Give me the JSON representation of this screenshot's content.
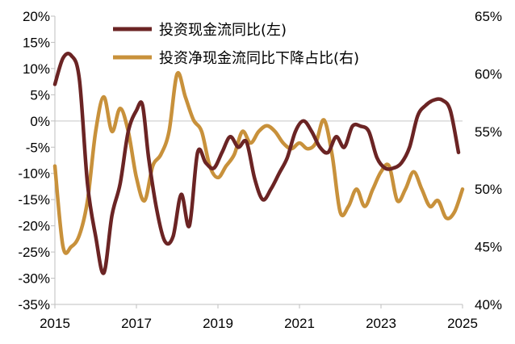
{
  "chart_data": {
    "type": "line",
    "title": "",
    "xlabel": "",
    "x_ticks": [
      "2015",
      "2017",
      "2019",
      "2021",
      "2023",
      "2025"
    ],
    "x_range": [
      2015,
      2025
    ],
    "left_axis": {
      "ylim": [
        -35,
        20
      ],
      "ticks": [
        20,
        15,
        10,
        5,
        0,
        -5,
        -10,
        -15,
        -20,
        -25,
        -30,
        -35
      ],
      "tick_labels": [
        "20%",
        "15%",
        "10%",
        "5%",
        "0%",
        "-5%",
        "-10%",
        "-15%",
        "-20%",
        "-25%",
        "-30%",
        "-35%"
      ]
    },
    "right_axis": {
      "ylim": [
        40,
        65
      ],
      "ticks": [
        65,
        60,
        55,
        50,
        45,
        40
      ],
      "tick_labels": [
        "65%",
        "60%",
        "55%",
        "50%",
        "45%",
        "40%"
      ]
    },
    "zero_line": true,
    "legend_position": "top",
    "series": [
      {
        "name": "投资现金流同比(左)",
        "axis": "left",
        "color": "#6b2424",
        "points": [
          [
            2015.0,
            7
          ],
          [
            2015.2,
            12
          ],
          [
            2015.4,
            12.5
          ],
          [
            2015.6,
            8
          ],
          [
            2015.8,
            -12
          ],
          [
            2016.0,
            -22
          ],
          [
            2016.2,
            -29
          ],
          [
            2016.4,
            -18
          ],
          [
            2016.6,
            -12
          ],
          [
            2016.8,
            -2
          ],
          [
            2017.0,
            2
          ],
          [
            2017.15,
            3
          ],
          [
            2017.3,
            -7
          ],
          [
            2017.5,
            -17
          ],
          [
            2017.7,
            -23
          ],
          [
            2017.9,
            -22
          ],
          [
            2018.1,
            -14
          ],
          [
            2018.3,
            -20
          ],
          [
            2018.5,
            -6
          ],
          [
            2018.7,
            -8
          ],
          [
            2018.9,
            -9
          ],
          [
            2019.1,
            -6
          ],
          [
            2019.3,
            -3
          ],
          [
            2019.5,
            -5
          ],
          [
            2019.7,
            -4
          ],
          [
            2019.9,
            -11
          ],
          [
            2020.1,
            -15
          ],
          [
            2020.3,
            -13
          ],
          [
            2020.5,
            -10
          ],
          [
            2020.7,
            -7
          ],
          [
            2020.9,
            -2
          ],
          [
            2021.1,
            0
          ],
          [
            2021.3,
            -2
          ],
          [
            2021.5,
            -5
          ],
          [
            2021.7,
            -6
          ],
          [
            2021.9,
            -3
          ],
          [
            2022.1,
            -5
          ],
          [
            2022.3,
            -1
          ],
          [
            2022.5,
            -1
          ],
          [
            2022.7,
            -2
          ],
          [
            2022.9,
            -7
          ],
          [
            2023.1,
            -9
          ],
          [
            2023.3,
            -9
          ],
          [
            2023.5,
            -8
          ],
          [
            2023.7,
            -5
          ],
          [
            2023.9,
            1
          ],
          [
            2024.1,
            3
          ],
          [
            2024.3,
            4
          ],
          [
            2024.5,
            4
          ],
          [
            2024.7,
            2
          ],
          [
            2024.9,
            -6
          ]
        ]
      },
      {
        "name": "投资净现金流同比下降占比(右)",
        "axis": "right",
        "color": "#c8913b",
        "points": [
          [
            2015.0,
            52
          ],
          [
            2015.2,
            45
          ],
          [
            2015.4,
            45
          ],
          [
            2015.6,
            46
          ],
          [
            2015.8,
            49
          ],
          [
            2016.0,
            55
          ],
          [
            2016.2,
            58
          ],
          [
            2016.4,
            55
          ],
          [
            2016.6,
            57
          ],
          [
            2016.8,
            55
          ],
          [
            2017.0,
            51
          ],
          [
            2017.2,
            49
          ],
          [
            2017.4,
            52
          ],
          [
            2017.6,
            53
          ],
          [
            2017.8,
            55
          ],
          [
            2018.0,
            60
          ],
          [
            2018.2,
            58
          ],
          [
            2018.4,
            56
          ],
          [
            2018.6,
            55
          ],
          [
            2018.8,
            52
          ],
          [
            2019.0,
            51
          ],
          [
            2019.2,
            52
          ],
          [
            2019.4,
            53
          ],
          [
            2019.6,
            55
          ],
          [
            2019.8,
            54
          ],
          [
            2020.0,
            55
          ],
          [
            2020.2,
            55.5
          ],
          [
            2020.4,
            55
          ],
          [
            2020.6,
            54
          ],
          [
            2020.8,
            53.5
          ],
          [
            2021.0,
            54
          ],
          [
            2021.2,
            53.5
          ],
          [
            2021.4,
            54
          ],
          [
            2021.6,
            56
          ],
          [
            2021.8,
            53
          ],
          [
            2022.0,
            48
          ],
          [
            2022.2,
            48.5
          ],
          [
            2022.4,
            50
          ],
          [
            2022.6,
            48.5
          ],
          [
            2022.8,
            50
          ],
          [
            2023.0,
            51.5
          ],
          [
            2023.2,
            52
          ],
          [
            2023.4,
            49
          ],
          [
            2023.6,
            50
          ],
          [
            2023.8,
            51.5
          ],
          [
            2024.0,
            50
          ],
          [
            2024.2,
            48.5
          ],
          [
            2024.4,
            49
          ],
          [
            2024.6,
            47.5
          ],
          [
            2024.8,
            48
          ],
          [
            2025.0,
            50
          ]
        ]
      }
    ]
  }
}
